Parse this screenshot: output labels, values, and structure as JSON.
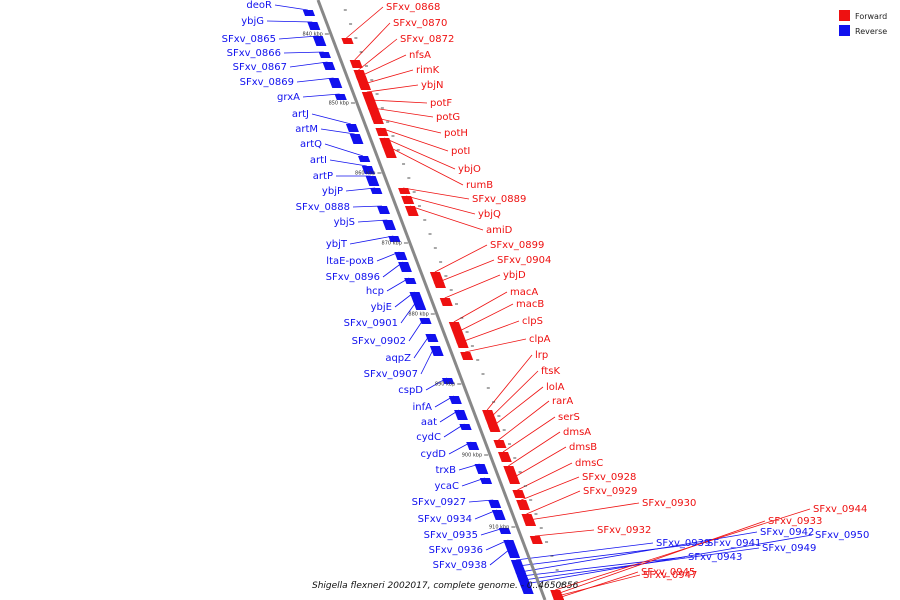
{
  "colors": {
    "forward": "#ee1111",
    "reverse": "#1111ee",
    "backbone": "#888888"
  },
  "legend": [
    {
      "label": "Forward",
      "color": "#ee1111"
    },
    {
      "label": "Reverse",
      "color": "#1111ee"
    }
  ],
  "caption": "Shigella flexneri 2002017, complete genome. - 0..4650856",
  "ticks": [
    "840 kbp",
    "850 kbp",
    "860 kbp",
    "870 kbp",
    "880 kbp",
    "890 kbp",
    "900 kbp",
    "910 kbp"
  ],
  "reverse_genes": [
    "deoR",
    "ybjG",
    "SFxv_0865",
    "SFxv_0866",
    "SFxv_0867",
    "SFxv_0869",
    "grxA",
    "artJ",
    "artM",
    "artQ",
    "artI",
    "artP",
    "ybjP",
    "SFxv_0888",
    "ybjS",
    "ybjT",
    "ltaE-poxB",
    "SFxv_0896",
    "hcp",
    "ybjE",
    "SFxv_0901",
    "SFxv_0902",
    "aqpZ",
    "SFxv_0907",
    "cspD",
    "infA",
    "aat",
    "cydC",
    "cydD",
    "trxB",
    "ycaC",
    "SFxv_0927",
    "SFxv_0934",
    "SFxv_0935",
    "SFxv_0936",
    "SFxv_0938",
    "SFxv_0939",
    "SFxv_0941",
    "SFxv_0942",
    "SFxv_0943",
    "SFxv_0949",
    "SFxv_0950"
  ],
  "forward_genes": [
    "SFxv_0868",
    "SFxv_0870",
    "SFxv_0872",
    "nfsA",
    "rimK",
    "ybjN",
    "potF",
    "potG",
    "potH",
    "potI",
    "ybjO",
    "rumB",
    "SFxv_0889",
    "ybjQ",
    "amiD",
    "SFxv_0899",
    "SFxv_0904",
    "ybjD",
    "macA",
    "macB",
    "clpS",
    "clpA",
    "lrp",
    "ftsK",
    "lolA",
    "rarA",
    "serS",
    "dmsA",
    "dmsB",
    "dmsC",
    "SFxv_0928",
    "SFxv_0929",
    "SFxv_0930",
    "SFxv_0932",
    "SFxv_0933",
    "SFxv_0944",
    "SFxv_0945",
    "SFxv_0947"
  ]
}
